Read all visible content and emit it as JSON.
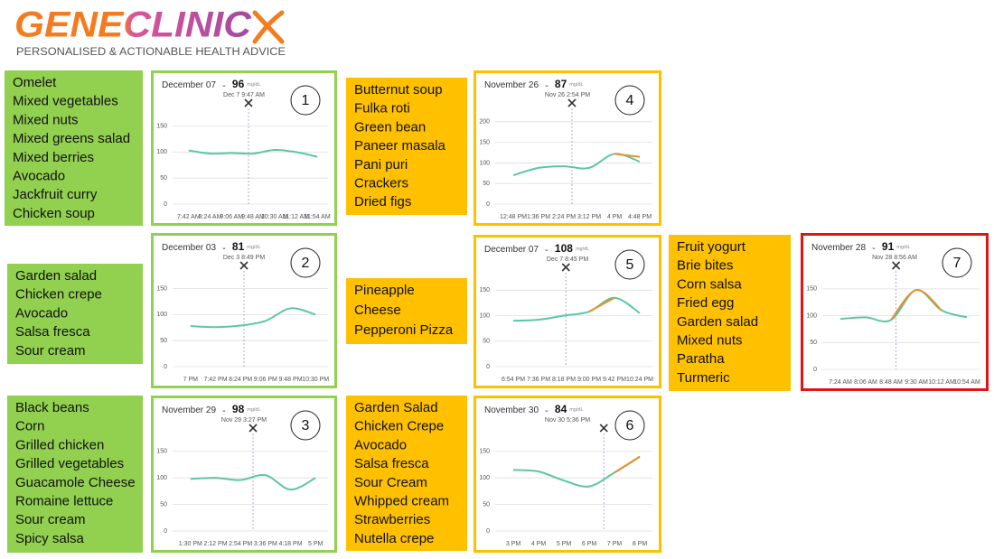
{
  "logo": "GENECLINIC",
  "tagline": "PERSONALISED & ACTIONABLE HEALTH ADVICE",
  "meals": [
    {
      "color": "#92d050",
      "foods": [
        "Omelet",
        "Mixed vegetables",
        "Mixed nuts",
        "Mixed greens salad",
        "Mixed berries",
        "Avocado",
        "Jackfruit curry",
        "Chicken soup"
      ]
    },
    {
      "color": "#92d050",
      "foods": [
        "Garden salad",
        "Chicken crepe",
        "Avocado",
        "Salsa fresca",
        "Sour cream"
      ]
    },
    {
      "color": "#92d050",
      "foods": [
        "Black beans",
        "Corn",
        "Grilled chicken",
        "Grilled vegetables",
        "Guacamole Cheese",
        "Romaine lettuce",
        "Sour cream",
        "Spicy salsa"
      ]
    },
    {
      "color": "#ffc000",
      "foods": [
        "Butternut soup",
        "Fulka roti",
        "Green bean",
        "Paneer masala",
        "Pani puri",
        "Crackers",
        "Dried figs"
      ]
    },
    {
      "color": "#ffc000",
      "foods": [
        "Pineapple",
        "Cheese",
        "Pepperoni  Pizza"
      ]
    },
    {
      "color": "#ffc000",
      "foods": [
        "Garden Salad",
        "Chicken Crepe",
        "Avocado",
        "Salsa fresca",
        "Sour Cream",
        "Whipped cream",
        "Strawberries",
        "Nutella crepe"
      ]
    },
    {
      "color": "#ffc000",
      "foods": [
        "Fruit yogurt",
        "Brie bites",
        "Corn salsa",
        "Fried egg",
        "Garden salad",
        "Mixed nuts",
        "Paratha",
        "Turmeric"
      ]
    }
  ],
  "chart_data": [
    {
      "type": "line",
      "label": 1,
      "border": "#92d050",
      "title": "December 07",
      "reading": 96,
      "unit": "mg/dL",
      "timestamp": "Dec 7 9:47 AM",
      "categories": [
        "7:42 AM",
        "8:24 AM",
        "9:06 AM",
        "9:48 AM",
        "10:30 AM",
        "11:12 AM",
        "11:54 AM"
      ],
      "series": [
        {
          "color": "#5cc6a8",
          "values": [
            103,
            97,
            98,
            97,
            104,
            100,
            91
          ]
        }
      ],
      "ylim": [
        0,
        170
      ],
      "yticks": [
        0,
        50,
        100,
        150
      ],
      "grid": true
    },
    {
      "type": "line",
      "label": 2,
      "border": "#92d050",
      "title": "December 03",
      "reading": 81,
      "unit": "mg/dL",
      "timestamp": "Dec 3 8:49 PM",
      "categories": [
        "7 PM",
        "7:42 PM",
        "8:24 PM",
        "9:06 PM",
        "9:48 PM",
        "10:30 PM"
      ],
      "series": [
        {
          "color": "#5cc6a8",
          "values": [
            78,
            76,
            79,
            88,
            112,
            100
          ]
        }
      ],
      "ylim": [
        0,
        170
      ],
      "yticks": [
        0,
        50,
        100,
        150
      ],
      "grid": true
    },
    {
      "type": "line",
      "label": 3,
      "border": "#92d050",
      "title": "November 29",
      "reading": 98,
      "unit": "mg/dL",
      "timestamp": "Nov 29 3:27 PM",
      "categories": [
        "1:30 PM",
        "2:12 PM",
        "2:54 PM",
        "3:36 PM",
        "4:18 PM",
        "5 PM"
      ],
      "series": [
        {
          "color": "#5cc6a8",
          "values": [
            98,
            100,
            96,
            105,
            78,
            100
          ]
        }
      ],
      "ylim": [
        0,
        170
      ],
      "yticks": [
        0,
        50,
        100,
        150
      ],
      "grid": true
    },
    {
      "type": "line",
      "label": 4,
      "border": "#ffc000",
      "title": "November 26",
      "reading": 87,
      "unit": "mg/dL",
      "timestamp": "Nov 26 2:54 PM",
      "categories": [
        "12:48 PM",
        "1:36 PM",
        "2:24 PM",
        "3:12 PM",
        "4 PM",
        "4:48 PM"
      ],
      "series": [
        {
          "color": "#5cc6a8",
          "values": [
            70,
            88,
            92,
            88,
            122,
            103
          ]
        },
        {
          "color": "#e8902a",
          "values": [
            null,
            null,
            null,
            null,
            122,
            115
          ]
        }
      ],
      "ylim": [
        0,
        215
      ],
      "yticks": [
        0,
        50,
        100,
        150,
        200
      ],
      "grid": true
    },
    {
      "type": "line",
      "label": 5,
      "border": "#ffc000",
      "title": "December 07",
      "reading": 108,
      "unit": "mg/dL",
      "timestamp": "Dec 7 8:45 PM",
      "categories": [
        "6:54 PM",
        "7:36 PM",
        "8:18 PM",
        "9:00 PM",
        "9:42 PM",
        "10:24 PM"
      ],
      "series": [
        {
          "color": "#5cc6a8",
          "values": [
            90,
            92,
            100,
            108,
            135,
            105
          ]
        },
        {
          "color": "#e8902a",
          "values": [
            null,
            null,
            null,
            108,
            135,
            null
          ]
        }
      ],
      "ylim": [
        0,
        170
      ],
      "yticks": [
        0,
        50,
        100,
        150
      ],
      "grid": true
    },
    {
      "type": "line",
      "label": 6,
      "border": "#ffc000",
      "title": "November 30",
      "reading": 84,
      "unit": "mg/dL",
      "timestamp": "Nov 30 5:36 PM",
      "categories": [
        "3 PM",
        "4 PM",
        "5 PM",
        "6 PM",
        "7 PM",
        "8 PM"
      ],
      "series": [
        {
          "color": "#5cc6a8",
          "values": [
            115,
            112,
            95,
            84,
            110,
            140
          ]
        },
        {
          "color": "#e8902a",
          "values": [
            null,
            null,
            null,
            null,
            110,
            140
          ]
        }
      ],
      "ylim": [
        0,
        170
      ],
      "yticks": [
        0,
        50,
        100,
        150
      ],
      "grid": true
    },
    {
      "type": "line",
      "label": 7,
      "border": "#e31414",
      "title": "November 28",
      "reading": 91,
      "unit": "mg/dL",
      "timestamp": "Nov 28 8:56 AM",
      "categories": [
        "7:24 AM",
        "8:06 AM",
        "8:48 AM",
        "9:30 AM",
        "10:12 AM",
        "10:54 AM"
      ],
      "series": [
        {
          "color": "#5cc6a8",
          "values": [
            94,
            97,
            92,
            148,
            110,
            97
          ]
        },
        {
          "color": "#e8902a",
          "values": [
            null,
            null,
            92,
            148,
            110,
            null
          ]
        }
      ],
      "ylim": [
        0,
        170
      ],
      "yticks": [
        0,
        50,
        100,
        150
      ],
      "grid": true
    }
  ]
}
